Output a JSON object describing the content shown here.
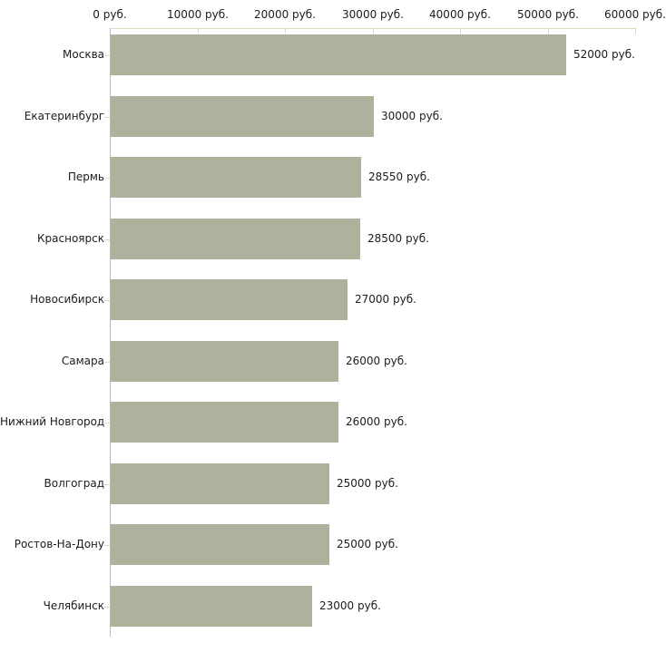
{
  "chart_data": {
    "type": "bar",
    "orientation": "horizontal",
    "title": "",
    "xlabel": "",
    "ylabel": "",
    "grid": false,
    "legend_position": "none",
    "categories": [
      "Москва",
      "Екатеринбург",
      "Пермь",
      "Красноярск",
      "Новосибирск",
      "Самара",
      "Нижний Новгород",
      "Волгоград",
      "Ростов-На-Дону",
      "Челябинск"
    ],
    "values": [
      52000,
      30000,
      28550,
      28500,
      27000,
      26000,
      26000,
      25000,
      25000,
      23000
    ],
    "value_labels": [
      "52000 руб.",
      "30000 руб.",
      "28550 руб.",
      "28500 руб.",
      "27000 руб.",
      "26000 руб.",
      "26000 руб.",
      "25000 руб.",
      "25000 руб.",
      "23000 руб."
    ],
    "x_axis": {
      "position": "top",
      "min": 0,
      "max": 60000,
      "ticks": [
        0,
        10000,
        20000,
        30000,
        40000,
        50000,
        60000
      ],
      "tick_labels": [
        "0 руб.",
        "10000 руб.",
        "20000 руб.",
        "30000 руб.",
        "40000 руб.",
        "50000 руб.",
        "60000 руб."
      ]
    },
    "colors": {
      "bar": "#acb29b",
      "axis_line": "#d9dbc0",
      "tick": "#d9dbc0",
      "category_axis": "#b9b9b9",
      "text": "#1c1c1c",
      "background": "#ffffff"
    }
  }
}
